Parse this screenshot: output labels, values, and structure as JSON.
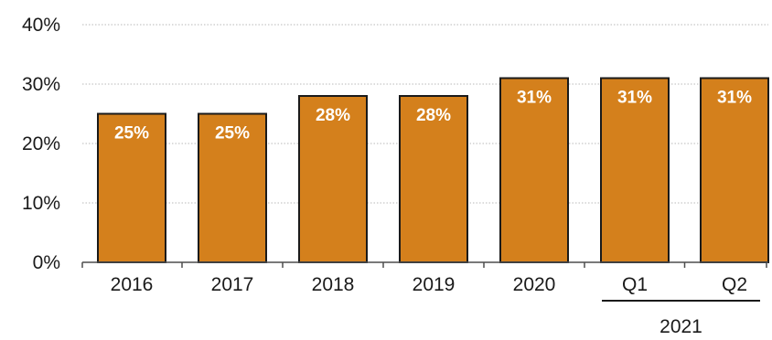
{
  "chart_data": {
    "type": "bar",
    "categories": [
      "2016",
      "2017",
      "2018",
      "2019",
      "2020",
      "Q1",
      "Q2"
    ],
    "values": [
      25,
      25,
      28,
      28,
      31,
      31,
      31
    ],
    "data_labels": [
      "25%",
      "25%",
      "28%",
      "28%",
      "31%",
      "31%",
      "31%"
    ],
    "y_ticks": [
      "0%",
      "10%",
      "20%",
      "30%",
      "40%"
    ],
    "ylim": [
      0,
      40
    ],
    "grid": true,
    "group_label": "2021",
    "group_categories": [
      "Q1",
      "Q2"
    ],
    "title": "",
    "xlabel": "",
    "ylabel": "",
    "colors": {
      "bar": "#d4801c",
      "bar_outline": "#1a1a1a",
      "grid": "#b8b8b8",
      "axis": "#4d4d4d",
      "data_label": "#ffffff"
    }
  }
}
